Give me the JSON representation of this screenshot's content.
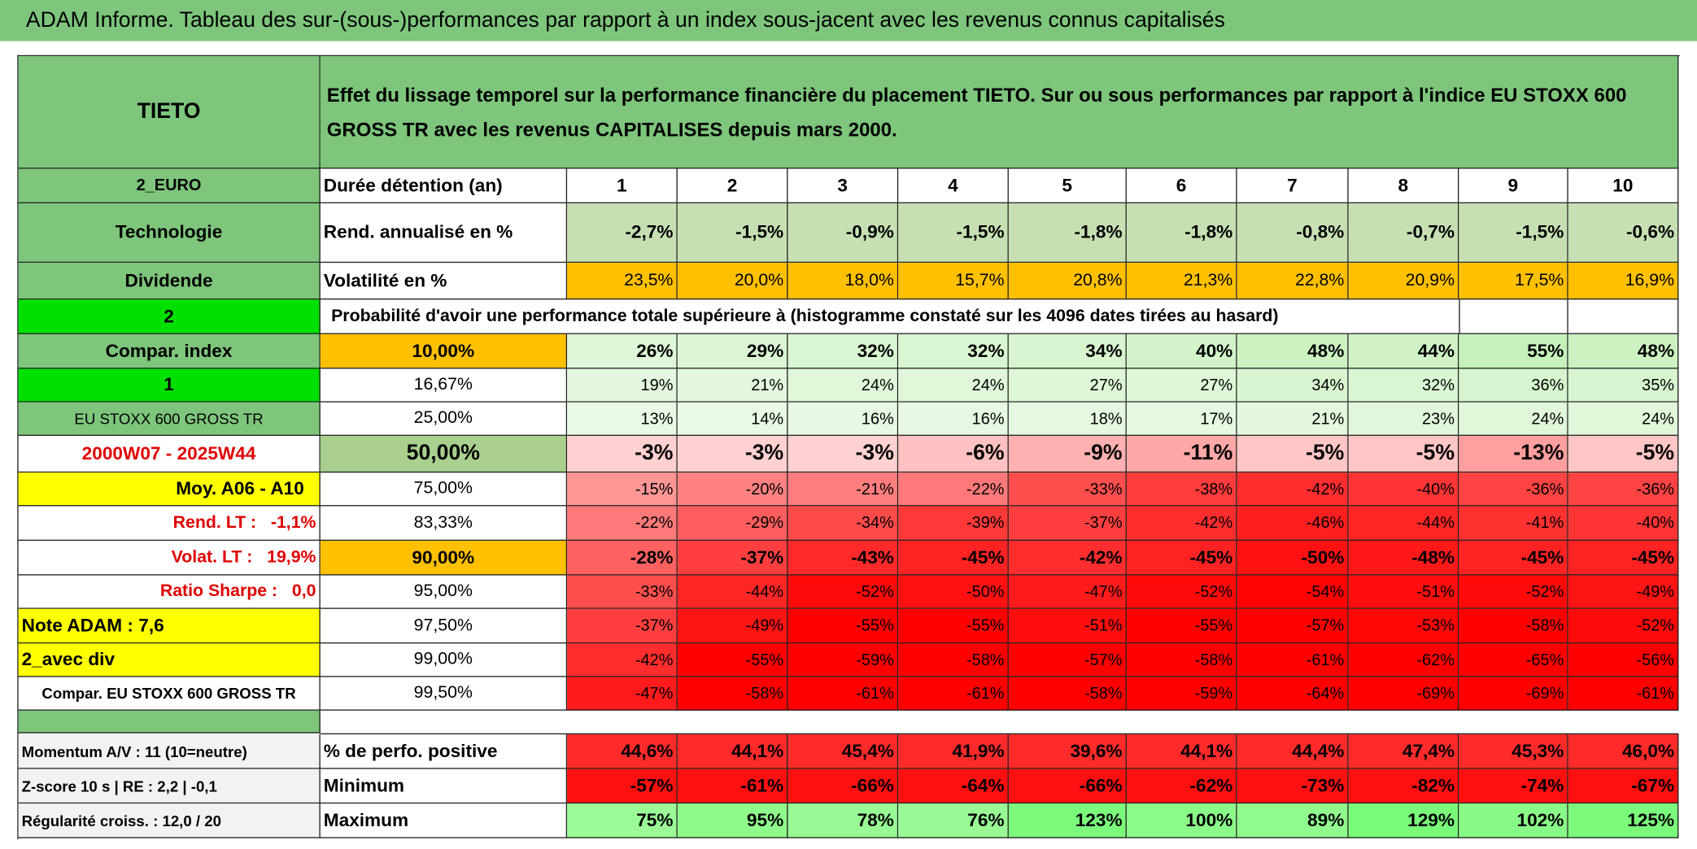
{
  "header": {
    "title": "ADAM Informe. Tableau des sur-(sous-)performances par rapport à un index sous-jacent avec les revenus connus capitalisés"
  },
  "table": {
    "side_labels": [
      "TIETO",
      "2_EURO",
      "Technologie",
      "Dividende",
      "2",
      "Compar. index",
      "1",
      "EU STOXX 600 GROSS TR",
      "2000W07 - 2025W44",
      "Moy. A06 - A10",
      "Rend. LT :   -1,1%",
      "Volat. LT :   19,9%",
      "Ratio Sharpe :   0,0",
      "Note ADAM : 7,6",
      "2_avec div",
      "Compar. EU STOXX 600 GROSS TR",
      "Momentum A/V : 11 (10=neutre)",
      "Z-score 10 s | RE : 2,2 | -0,1",
      "Régularité croiss. : 12,0 / 20"
    ],
    "description": "Effet du lissage temporel sur la performance financière du placement TIETO. Sur ou sous performances par rapport à l'indice EU STOXX 600 GROSS TR avec les revenus CAPITALISES depuis mars 2000.",
    "horizon_label": "Durée détention (an)",
    "horizons": [
      "1",
      "2",
      "3",
      "4",
      "5",
      "6",
      "7",
      "8",
      "9",
      "10"
    ],
    "return_label": "Rend. annualisé en %",
    "returns": [
      "-2,7%",
      "-1,5%",
      "-0,9%",
      "-1,5%",
      "-1,8%",
      "-1,8%",
      "-0,8%",
      "-0,7%",
      "-1,5%",
      "-0,6%"
    ],
    "volatility_label": "Volatilité en %",
    "volatility": [
      "23,5%",
      "20,0%",
      "18,0%",
      "15,7%",
      "20,8%",
      "21,3%",
      "22,8%",
      "20,9%",
      "17,5%",
      "16,9%"
    ],
    "probability_title": "Probabilité d'avoir une performance totale supérieure à (histogramme constaté sur les 4096 dates tirées au hasard)",
    "thresholds": [
      "10,00%",
      "16,67%",
      "25,00%",
      "50,00%",
      "75,00%",
      "83,33%",
      "90,00%",
      "95,00%",
      "97,50%",
      "99,00%",
      "99,50%"
    ],
    "probabilities": [
      [
        "26%",
        "29%",
        "32%",
        "32%",
        "34%",
        "40%",
        "48%",
        "44%",
        "55%",
        "48%"
      ],
      [
        "19%",
        "21%",
        "24%",
        "24%",
        "27%",
        "27%",
        "34%",
        "32%",
        "36%",
        "35%"
      ],
      [
        "13%",
        "14%",
        "16%",
        "16%",
        "18%",
        "17%",
        "21%",
        "23%",
        "24%",
        "24%"
      ],
      [
        "-3%",
        "-3%",
        "-3%",
        "-6%",
        "-9%",
        "-11%",
        "-5%",
        "-5%",
        "-13%",
        "-5%"
      ],
      [
        "-15%",
        "-20%",
        "-21%",
        "-22%",
        "-33%",
        "-38%",
        "-42%",
        "-40%",
        "-36%",
        "-36%"
      ],
      [
        "-22%",
        "-29%",
        "-34%",
        "-39%",
        "-37%",
        "-42%",
        "-46%",
        "-44%",
        "-41%",
        "-40%"
      ],
      [
        "-28%",
        "-37%",
        "-43%",
        "-45%",
        "-42%",
        "-45%",
        "-50%",
        "-48%",
        "-45%",
        "-45%"
      ],
      [
        "-33%",
        "-44%",
        "-52%",
        "-50%",
        "-47%",
        "-52%",
        "-54%",
        "-51%",
        "-52%",
        "-49%"
      ],
      [
        "-37%",
        "-49%",
        "-55%",
        "-55%",
        "-51%",
        "-55%",
        "-57%",
        "-53%",
        "-58%",
        "-52%"
      ],
      [
        "-42%",
        "-55%",
        "-59%",
        "-58%",
        "-57%",
        "-58%",
        "-61%",
        "-62%",
        "-65%",
        "-56%"
      ],
      [
        "-47%",
        "-58%",
        "-61%",
        "-61%",
        "-58%",
        "-59%",
        "-64%",
        "-69%",
        "-69%",
        "-61%"
      ]
    ],
    "stats": [
      {
        "label": "% de perfo. positive",
        "values": [
          "44,6%",
          "44,1%",
          "45,4%",
          "41,9%",
          "39,6%",
          "44,1%",
          "44,4%",
          "47,4%",
          "45,3%",
          "46,0%"
        ]
      },
      {
        "label": "Minimum",
        "values": [
          "-57%",
          "-61%",
          "-66%",
          "-64%",
          "-66%",
          "-62%",
          "-73%",
          "-82%",
          "-74%",
          "-67%"
        ]
      },
      {
        "label": "Maximum",
        "values": [
          "75%",
          "95%",
          "78%",
          "76%",
          "123%",
          "100%",
          "89%",
          "129%",
          "102%",
          "125%"
        ]
      }
    ]
  }
}
